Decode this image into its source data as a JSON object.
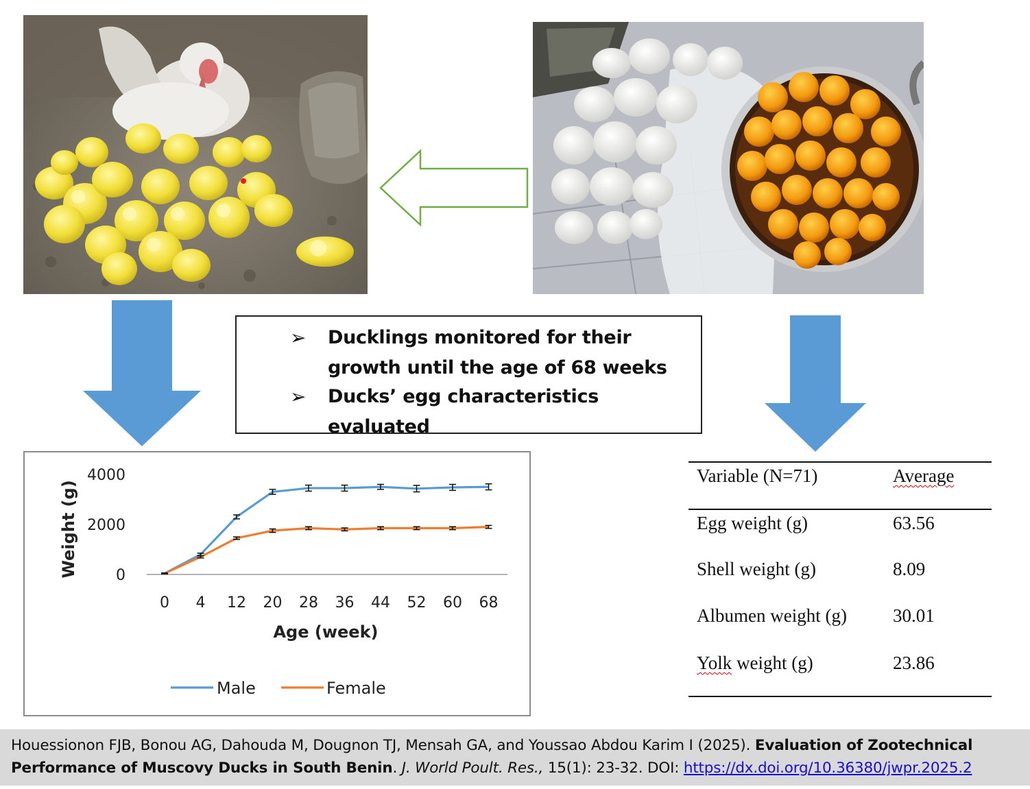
{
  "photos": {
    "ducklings": "muscovy-duck-with-ducklings-photo",
    "eggs": "broken-eggs-and-yolks-in-pot-photo"
  },
  "summary": {
    "bullet_glyph": "➢",
    "line1a": "Ducklings monitored for their",
    "line1b": "growth until the age of 68 weeks",
    "line2": "Ducks’ egg characteristics evaluated"
  },
  "colors": {
    "arrow_fill": "#5b9bd5",
    "outline_arrow": "#70ad47",
    "male": "#5b9bd5",
    "female": "#ed7d31",
    "citation_bg": "#d9d9d9"
  },
  "chart_data": {
    "type": "line",
    "xlabel": "Age (week)",
    "ylabel": "Weight (g)",
    "categories": [
      "0",
      "4",
      "12",
      "20",
      "28",
      "36",
      "44",
      "52",
      "60",
      "68"
    ],
    "yticks": [
      "0",
      "2000",
      "4000"
    ],
    "ylim": [
      0,
      4000
    ],
    "grid": false,
    "legend_position": "bottom",
    "series": [
      {
        "name": "Male",
        "color": "#5b9bd5",
        "values": [
          40,
          800,
          2300,
          3300,
          3450,
          3450,
          3500,
          3430,
          3480,
          3500
        ],
        "errors": [
          20,
          50,
          80,
          100,
          120,
          120,
          100,
          130,
          120,
          120
        ]
      },
      {
        "name": "Female",
        "color": "#ed7d31",
        "values": [
          40,
          700,
          1450,
          1750,
          1850,
          1800,
          1850,
          1850,
          1850,
          1900
        ],
        "errors": [
          20,
          40,
          50,
          70,
          60,
          60,
          60,
          60,
          60,
          60
        ]
      }
    ]
  },
  "table": {
    "header": {
      "variable": "Variable (N=71)",
      "average": "Average"
    },
    "rows": [
      {
        "variable": "Egg weight (g)",
        "average": "63.56"
      },
      {
        "variable": "Shell weight (g)",
        "average": "8.09"
      },
      {
        "variable": "Albumen weight (g)",
        "average": "30.01"
      },
      {
        "variable": "Yolk weight (g)",
        "average": "23.86"
      }
    ]
  },
  "citation": {
    "authors": "Houessionon FJB, Bonou AG, Dahouda M, Dougnon TJ, Mensah GA, and Youssao Abdou Karim I (2025). ",
    "title": "Evaluation of Zootechnical Performance of Muscovy Ducks in South Benin",
    "after_title": ". ",
    "journal": "J. World Poult. Res.,",
    "volume": " 15(1): 23-32. DOI: ",
    "doi": "https://dx.doi.org/10.36380/jwpr.2025.2"
  }
}
